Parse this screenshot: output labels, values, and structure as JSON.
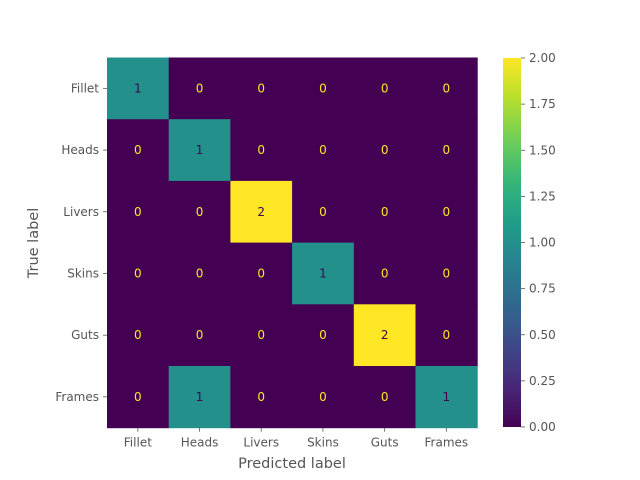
{
  "chart_data": {
    "type": "heatmap",
    "title": "",
    "xlabel": "Predicted label",
    "ylabel": "True label",
    "x_categories": [
      "Fillet",
      "Heads",
      "Livers",
      "Skins",
      "Guts",
      "Frames"
    ],
    "y_categories": [
      "Fillet",
      "Heads",
      "Livers",
      "Skins",
      "Guts",
      "Frames"
    ],
    "values": [
      [
        1,
        0,
        0,
        0,
        0,
        0
      ],
      [
        0,
        1,
        0,
        0,
        0,
        0
      ],
      [
        0,
        0,
        2,
        0,
        0,
        0
      ],
      [
        0,
        0,
        0,
        1,
        0,
        0
      ],
      [
        0,
        0,
        0,
        0,
        2,
        0
      ],
      [
        0,
        1,
        0,
        0,
        0,
        1
      ]
    ],
    "colormap": "viridis",
    "colorbar": {
      "range": [
        0,
        2
      ],
      "ticks": [
        "0.00",
        "0.25",
        "0.50",
        "0.75",
        "1.00",
        "1.25",
        "1.50",
        "1.75",
        "2.00"
      ]
    },
    "colors": {
      "low": "#440154",
      "mid": "#21918c",
      "high": "#fde725",
      "text_on_dark": "#fde725",
      "text_on_light": "#440154"
    },
    "grid": false
  }
}
